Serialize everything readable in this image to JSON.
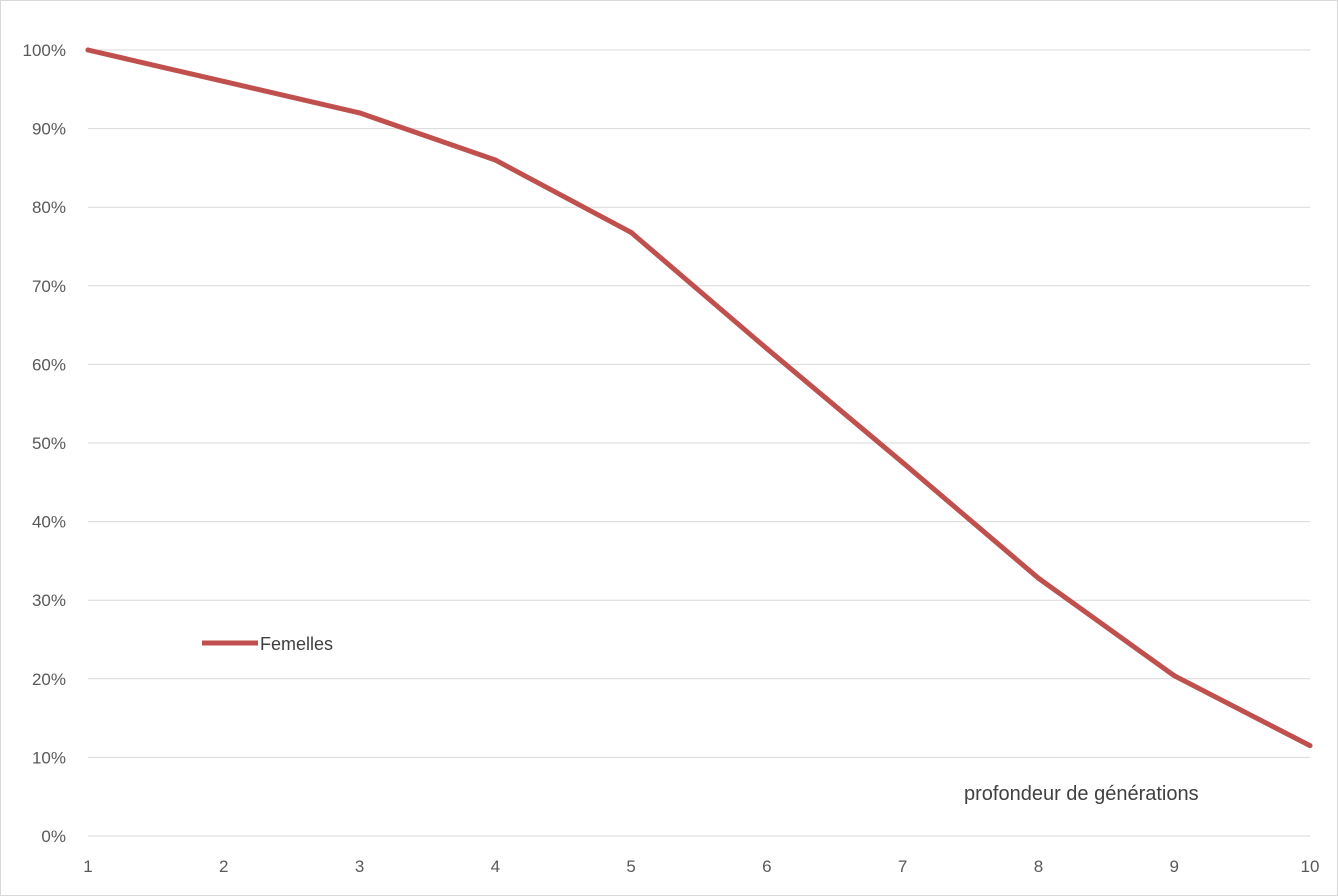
{
  "chart_data": {
    "type": "line",
    "title": "",
    "xlabel": "",
    "ylabel": "",
    "categories": [
      "1",
      "2",
      "3",
      "4",
      "5",
      "6",
      "7",
      "8",
      "9",
      "10"
    ],
    "y_tick_labels": [
      "0%",
      "10%",
      "20%",
      "30%",
      "40%",
      "50%",
      "60%",
      "70%",
      "80%",
      "90%",
      "100%"
    ],
    "ylim": [
      0,
      100
    ],
    "grid": true,
    "legend_position": "left",
    "series": [
      {
        "name": "Femelles",
        "color": "#c0504d",
        "values": [
          100,
          96,
          92,
          86,
          76.8,
          62,
          47.5,
          32.8,
          20.4,
          11.5
        ]
      }
    ],
    "annotation": "profondeur de générations"
  }
}
